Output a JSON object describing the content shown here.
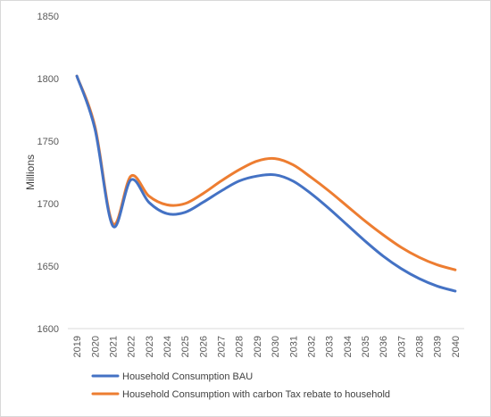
{
  "chart_data": {
    "type": "line",
    "title": "",
    "xlabel": "",
    "ylabel": "Millions",
    "ylim": [
      1600,
      1850
    ],
    "yticks": [
      1600,
      1650,
      1700,
      1750,
      1800,
      1850
    ],
    "grid": false,
    "legend_position": "bottom",
    "categories": [
      "2019",
      "2020",
      "2021",
      "2022",
      "2023",
      "2024",
      "2025",
      "2026",
      "2027",
      "2028",
      "2029",
      "2030",
      "2031",
      "2032",
      "2033",
      "2034",
      "2035",
      "2036",
      "2037",
      "2038",
      "2039",
      "2040"
    ],
    "series": [
      {
        "name": "Household Consumption  BAU",
        "color": "#4472C4",
        "values": [
          1802,
          1760,
          1682,
          1719,
          1701,
          1692,
          1693,
          1701,
          1710,
          1718,
          1722,
          1723,
          1718,
          1708,
          1696,
          1683,
          1670,
          1658,
          1648,
          1640,
          1634,
          1630
        ]
      },
      {
        "name": "Household Consumption with carbon Tax rebate to household",
        "color": "#ED7D31",
        "values": [
          1802,
          1762,
          1684,
          1722,
          1706,
          1699,
          1700,
          1708,
          1718,
          1727,
          1734,
          1736,
          1731,
          1721,
          1710,
          1698,
          1686,
          1675,
          1665,
          1657,
          1651,
          1647
        ]
      }
    ]
  }
}
